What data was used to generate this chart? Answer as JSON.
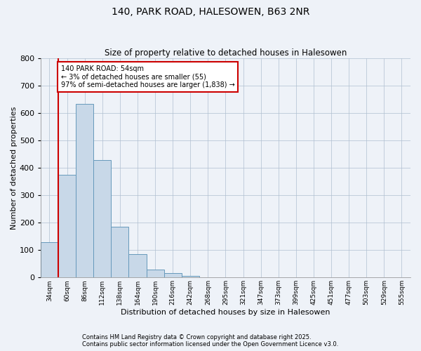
{
  "title_line1": "140, PARK ROAD, HALESOWEN, B63 2NR",
  "title_line2": "Size of property relative to detached houses in Halesowen",
  "xlabel": "Distribution of detached houses by size in Halesowen",
  "ylabel": "Number of detached properties",
  "bar_values": [
    130,
    375,
    635,
    430,
    185,
    85,
    30,
    15,
    5,
    2,
    1,
    1,
    0,
    0,
    0,
    0,
    0,
    0,
    0,
    0,
    0
  ],
  "categories": [
    "34sqm",
    "60sqm",
    "86sqm",
    "112sqm",
    "138sqm",
    "164sqm",
    "190sqm",
    "216sqm",
    "242sqm",
    "268sqm",
    "295sqm",
    "321sqm",
    "347sqm",
    "373sqm",
    "399sqm",
    "425sqm",
    "451sqm",
    "477sqm",
    "503sqm",
    "529sqm",
    "555sqm"
  ],
  "bar_color": "#c8d8e8",
  "bar_edge_color": "#6699bb",
  "background_color": "#eef2f8",
  "grid_color": "#b0bfd0",
  "annotation_text": "140 PARK ROAD: 54sqm\n← 3% of detached houses are smaller (55)\n97% of semi-detached houses are larger (1,838) →",
  "annotation_box_color": "#ffffff",
  "annotation_box_edge": "#cc0000",
  "vline_color": "#cc0000",
  "ylim": [
    0,
    800
  ],
  "yticks": [
    0,
    100,
    200,
    300,
    400,
    500,
    600,
    700,
    800
  ],
  "footer_line1": "Contains HM Land Registry data © Crown copyright and database right 2025.",
  "footer_line2": "Contains public sector information licensed under the Open Government Licence v3.0."
}
